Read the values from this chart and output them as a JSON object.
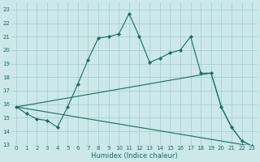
{
  "xlabel": "Humidex (Indice chaleur)",
  "xlim": [
    -0.5,
    23.5
  ],
  "ylim": [
    13,
    23.5
  ],
  "xticks": [
    0,
    1,
    2,
    3,
    4,
    5,
    6,
    7,
    8,
    9,
    10,
    11,
    12,
    13,
    14,
    15,
    16,
    17,
    18,
    19,
    20,
    21,
    22,
    23
  ],
  "yticks": [
    13,
    14,
    15,
    16,
    17,
    18,
    19,
    20,
    21,
    22,
    23
  ],
  "bg_color": "#cce8e8",
  "grid_color": "#a0cccc",
  "line_color": "#1a6b6b",
  "line1_x": [
    0,
    1,
    2,
    3,
    4,
    5,
    6,
    7,
    8,
    9,
    10,
    11,
    12,
    13,
    14,
    15,
    16,
    17,
    18,
    19,
    20,
    21,
    22,
    23
  ],
  "line1_y": [
    15.8,
    15.3,
    14.9,
    14.8,
    14.3,
    15.8,
    17.5,
    19.3,
    20.9,
    21.0,
    21.2,
    22.7,
    21.0,
    19.1,
    19.4,
    19.8,
    20.0,
    21.0,
    18.3,
    18.3,
    15.8,
    14.3,
    13.3,
    12.9
  ],
  "line2_x": [
    0,
    19,
    20,
    21,
    22,
    23
  ],
  "line2_y": [
    15.8,
    18.3,
    15.8,
    14.3,
    13.3,
    12.9
  ],
  "line3_x": [
    0,
    23
  ],
  "line3_y": [
    15.8,
    12.9
  ]
}
